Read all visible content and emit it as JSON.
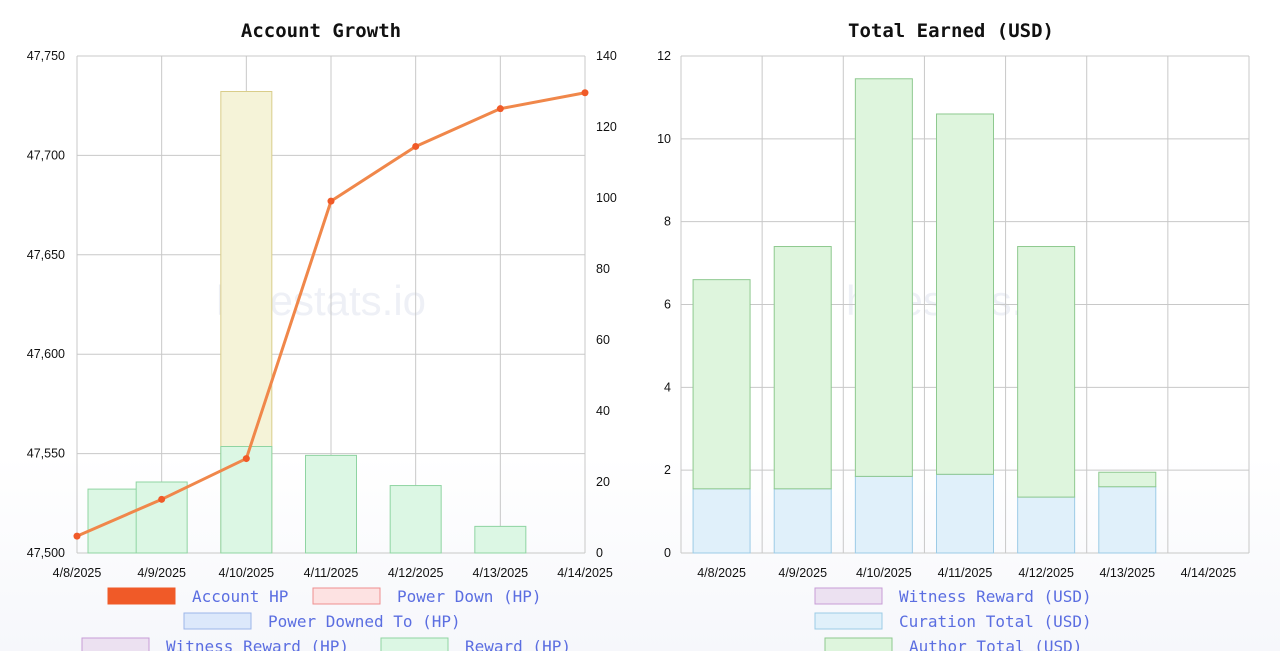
{
  "watermark": "hivestats.io",
  "colors": {
    "grid": "#c8c8c8",
    "account_hp": "#f0874a",
    "account_hp_point": "#f05a28",
    "power_down_fill": "#fde2e2",
    "power_down_stroke": "#ee8f8f",
    "power_downed_to_fill": "#dce8fb",
    "power_downed_to_stroke": "#9db6ea",
    "witness_fill": "#ece1f1",
    "witness_stroke": "#c79dd6",
    "reward_fill": "#dcf7e4",
    "reward_stroke": "#8fd4a2",
    "interest_fill": "#f5f3d8",
    "interest_stroke": "#d9cd8a",
    "curation_fill": "#e0f0fa",
    "curation_stroke": "#9ccbe6",
    "author_fill": "#def5dd",
    "author_stroke": "#8ec98f"
  },
  "chart_data": [
    {
      "type": "bar",
      "title": "Account Growth",
      "categories": [
        "4/8/2025",
        "4/9/2025",
        "4/10/2025",
        "4/11/2025",
        "4/12/2025",
        "4/13/2025",
        "4/14/2025"
      ],
      "y_left": {
        "ylim": [
          47500,
          47750
        ],
        "ticks": [
          "47,500",
          "47,550",
          "47,600",
          "47,650",
          "47,700",
          "47,750"
        ],
        "tick_values": [
          47500,
          47550,
          47600,
          47650,
          47700,
          47750
        ]
      },
      "y_right": {
        "ylim": [
          0,
          140
        ],
        "ticks": [
          "0",
          "20",
          "40",
          "60",
          "80",
          "100",
          "120",
          "140"
        ],
        "tick_values": [
          0,
          20,
          40,
          60,
          80,
          100,
          120,
          140
        ]
      },
      "series": [
        {
          "name": "Account HP",
          "kind": "line",
          "axis": "left",
          "values": [
            47508.5,
            47527,
            47547.5,
            47677,
            47704.5,
            47723.5,
            47731.5
          ]
        },
        {
          "name": "Reward (HP)",
          "kind": "bar",
          "axis": "right",
          "values": [
            18,
            20,
            30,
            27.5,
            19,
            7.5,
            null
          ]
        },
        {
          "kind": "bar",
          "axis": "right",
          "values": [
            null,
            null,
            130,
            null,
            null,
            null,
            null
          ]
        }
      ],
      "legend": [
        {
          "label": "Account HP",
          "swatch": "account_hp"
        },
        {
          "label": "Power Down (HP)",
          "swatch": "power_down"
        },
        {
          "label": "Power Downed To (HP)",
          "swatch": "power_downed_to"
        },
        {
          "label": "Witness Reward (HP)",
          "swatch": "witness"
        },
        {
          "label": "Reward (HP)",
          "swatch": "reward"
        }
      ],
      "legend_position": "bottom",
      "grid": true
    },
    {
      "type": "bar",
      "title": "Total Earned (USD)",
      "categories": [
        "4/8/2025",
        "4/9/2025",
        "4/10/2025",
        "4/11/2025",
        "4/12/2025",
        "4/13/2025",
        "4/14/2025"
      ],
      "y_left": {
        "ylim": [
          0,
          12
        ],
        "ticks": [
          "0",
          "2",
          "4",
          "6",
          "8",
          "10",
          "12"
        ],
        "tick_values": [
          0,
          2,
          4,
          6,
          8,
          10,
          12
        ]
      },
      "stacked": true,
      "series": [
        {
          "name": "Curation Total (USD)",
          "values": [
            1.55,
            1.55,
            1.85,
            1.9,
            1.35,
            1.6,
            0
          ]
        },
        {
          "name": "Author Total (USD)",
          "values": [
            5.05,
            5.85,
            9.6,
            8.7,
            6.05,
            0.35,
            0
          ]
        }
      ],
      "legend": [
        {
          "label": "Witness Reward (USD)",
          "swatch": "witness"
        },
        {
          "label": "Curation Total (USD)",
          "swatch": "curation"
        },
        {
          "label": "Author Total (USD)",
          "swatch": "author"
        }
      ],
      "legend_position": "bottom",
      "grid": true
    }
  ]
}
